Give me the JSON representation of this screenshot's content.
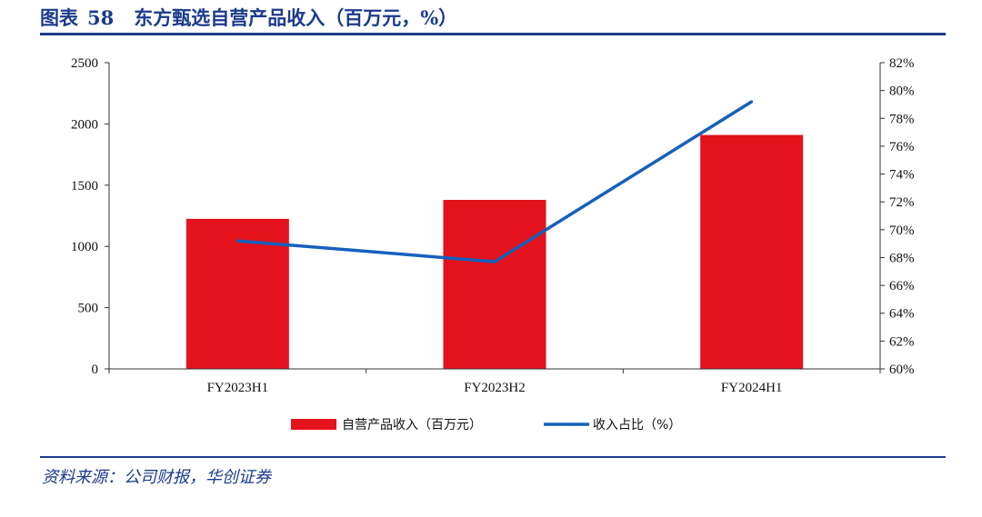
{
  "figure": {
    "label": "图表",
    "number": "58",
    "title": "东方甄选自营产品收入（百万元，%）",
    "source": "资料来源：公司财报，华创证券"
  },
  "chart_data": {
    "type": "bar",
    "categories": [
      "FY2023H1",
      "FY2023H2",
      "FY2024H1"
    ],
    "series": [
      {
        "name": "自营产品收入（百万元）",
        "type": "bar",
        "axis": "left",
        "color": "#e3121c",
        "values": [
          1225,
          1380,
          1910
        ]
      },
      {
        "name": "收入占比（%）",
        "type": "line",
        "axis": "right",
        "color": "#1560bd",
        "values": [
          69.2,
          67.7,
          79.2
        ]
      }
    ],
    "y_left": {
      "min": 0,
      "max": 2500,
      "step": 500,
      "ticks": [
        "0",
        "500",
        "1000",
        "1500",
        "2000",
        "2500"
      ]
    },
    "y_right": {
      "min": 60,
      "max": 82,
      "step": 2,
      "ticks": [
        "60%",
        "62%",
        "64%",
        "66%",
        "68%",
        "70%",
        "72%",
        "74%",
        "76%",
        "78%",
        "80%",
        "82%"
      ]
    },
    "legend_position": "bottom",
    "grid": false
  }
}
